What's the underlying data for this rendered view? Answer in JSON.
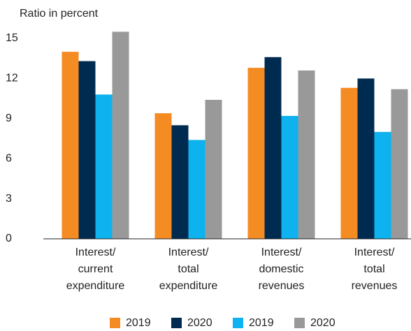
{
  "chart_data": {
    "type": "bar",
    "y_label": "Ratio in percent",
    "categories": [
      "Interest/\ncurrent\nexpenditure",
      "Interest/\ntotal\nexpenditure",
      "Interest/\ndomestic\nrevenues",
      "Interest/\ntotal\nrevenues"
    ],
    "series": [
      {
        "name": "2019",
        "color": "#f58b23",
        "values": [
          14.0,
          9.4,
          12.8,
          11.3
        ]
      },
      {
        "name": "2020",
        "color": "#002b50",
        "values": [
          13.3,
          8.5,
          13.6,
          12.0
        ]
      },
      {
        "name": "2019",
        "color": "#0db2ee",
        "values": [
          10.8,
          7.4,
          9.2,
          8.0
        ]
      },
      {
        "name": "2020",
        "color": "#999999",
        "values": [
          15.5,
          10.4,
          12.6,
          11.2
        ]
      }
    ],
    "ylim": [
      0,
      15
    ],
    "yticks": [
      0,
      3,
      6,
      9,
      12,
      15
    ],
    "grid": false
  }
}
